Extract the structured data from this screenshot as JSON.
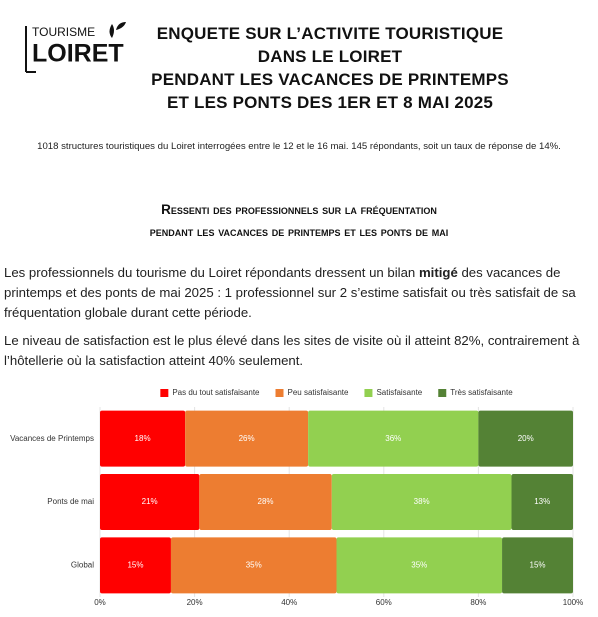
{
  "logo": {
    "top": "TOURISME",
    "bottom": "LOIRET"
  },
  "title": [
    "ENQUETE SUR L’ACTIVITE TOURISTIQUE",
    "DANS LE LOIRET",
    "PENDANT LES VACANCES DE PRINTEMPS",
    "ET LES PONTS DES 1ER ET 8 MAI 2025"
  ],
  "intro": "1018 structures touristiques du Loiret interrogées entre le 12 et le 16 mai. 145 répondants, soit un taux de réponse de 14%.",
  "section_title": [
    "Ressenti des professionnels sur la fréquentation",
    "pendant les vacances de printemps et les ponts de mai"
  ],
  "paragraphs": [
    [
      "Les professionnels du tourisme du Loiret répondants dressent un bilan ",
      "mitigé",
      " des vacances de printemps et des ponts de mai 2025 : 1 professionnel sur 2 s’estime satisfait ou très satisfait de sa fréquentation globale durant cette période."
    ],
    [
      "Le niveau de satisfaction est le plus élevé dans les sites de visite où il atteint 82%, contrairement à l’hôtellerie où la satisfaction atteint 40% seulement."
    ]
  ],
  "chart_data": {
    "type": "stacked-bar-horizontal",
    "categories": [
      "Vacances de Printemps",
      "Ponts de mai",
      "Global"
    ],
    "series": [
      {
        "name": "Pas du tout satisfaisante",
        "color": "#ff0000",
        "values": [
          18,
          21,
          15
        ],
        "value_labels": [
          "18%",
          "21%",
          "15%"
        ]
      },
      {
        "name": "Peu satisfaisante",
        "color": "#ed7d31",
        "values": [
          26,
          28,
          35
        ],
        "value_labels": [
          "26%",
          "28%",
          "35%"
        ]
      },
      {
        "name": "Satisfaisante",
        "color": "#92d050",
        "values": [
          36,
          38,
          35
        ],
        "value_labels": [
          "36%",
          "38%",
          "35%"
        ]
      },
      {
        "name": "Très satisfaisante",
        "color": "#548235",
        "values": [
          20,
          13,
          15
        ],
        "value_labels": [
          "20%",
          "13%",
          "15%"
        ]
      }
    ],
    "xlim": [
      0,
      100
    ],
    "xticks": [
      {
        "value": 0,
        "label": "0%"
      },
      {
        "value": 20,
        "label": "20%"
      },
      {
        "value": 40,
        "label": "40%"
      },
      {
        "value": 60,
        "label": "60%"
      },
      {
        "value": 80,
        "label": "80%"
      },
      {
        "value": 100,
        "label": "100%"
      }
    ],
    "grid": true,
    "legend": "top"
  }
}
